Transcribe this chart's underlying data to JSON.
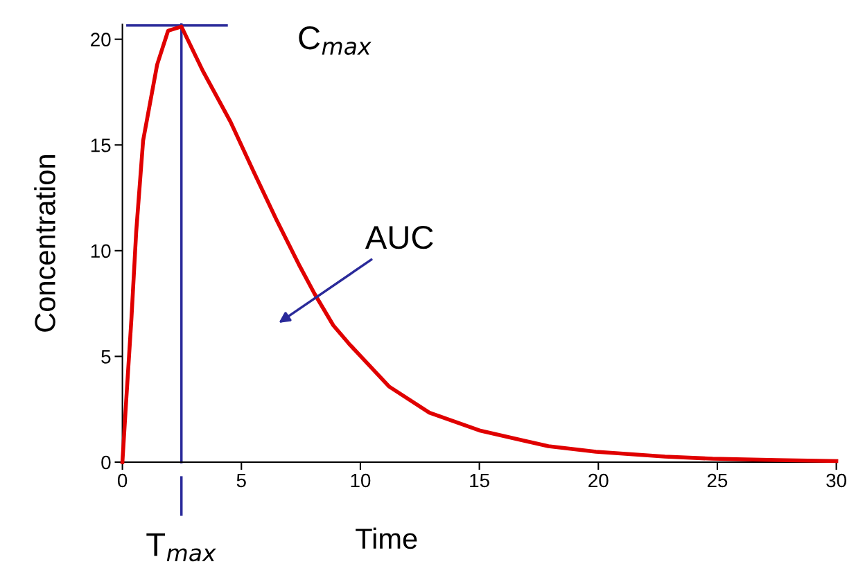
{
  "chart_data": {
    "type": "line",
    "xlabel": "Time",
    "ylabel": "Concentration",
    "x": [
      0,
      0.17,
      0.38,
      0.58,
      0.87,
      1.46,
      1.92,
      2.48,
      3.38,
      4.54,
      5.53,
      6.5,
      7.46,
      8.07,
      8.86,
      9.52,
      11.2,
      12.9,
      15.0,
      17.9,
      19.9,
      22.8,
      24.8,
      27.5,
      30
    ],
    "series": [
      {
        "color": "#e00000",
        "values": [
          0,
          3.1,
          6.8,
          10.9,
          15.2,
          18.8,
          20.4,
          20.6,
          18.5,
          16.1,
          13.7,
          11.4,
          9.25,
          7.97,
          6.47,
          5.6,
          3.58,
          2.34,
          1.5,
          0.75,
          0.49,
          0.26,
          0.16,
          0.1,
          0.05
        ]
      }
    ],
    "xlim": [
      0,
      30
    ],
    "ylim": [
      0,
      20.7
    ],
    "xticks": [
      0,
      5,
      10,
      15,
      20,
      25,
      30
    ],
    "yticks": [
      0,
      5,
      10,
      15,
      20
    ],
    "ref_lines": [
      {
        "axis": "x",
        "value": 2.48,
        "label": "T$_{max}$",
        "color": "#2a2a9a"
      },
      {
        "axis": "y",
        "value": 20.65,
        "label": "C$_{max}$",
        "color": "#2a2a9a"
      }
    ],
    "annotations": [
      "AUC"
    ],
    "grid": false,
    "legend": false,
    "marker": "none",
    "line_style": "solid"
  }
}
